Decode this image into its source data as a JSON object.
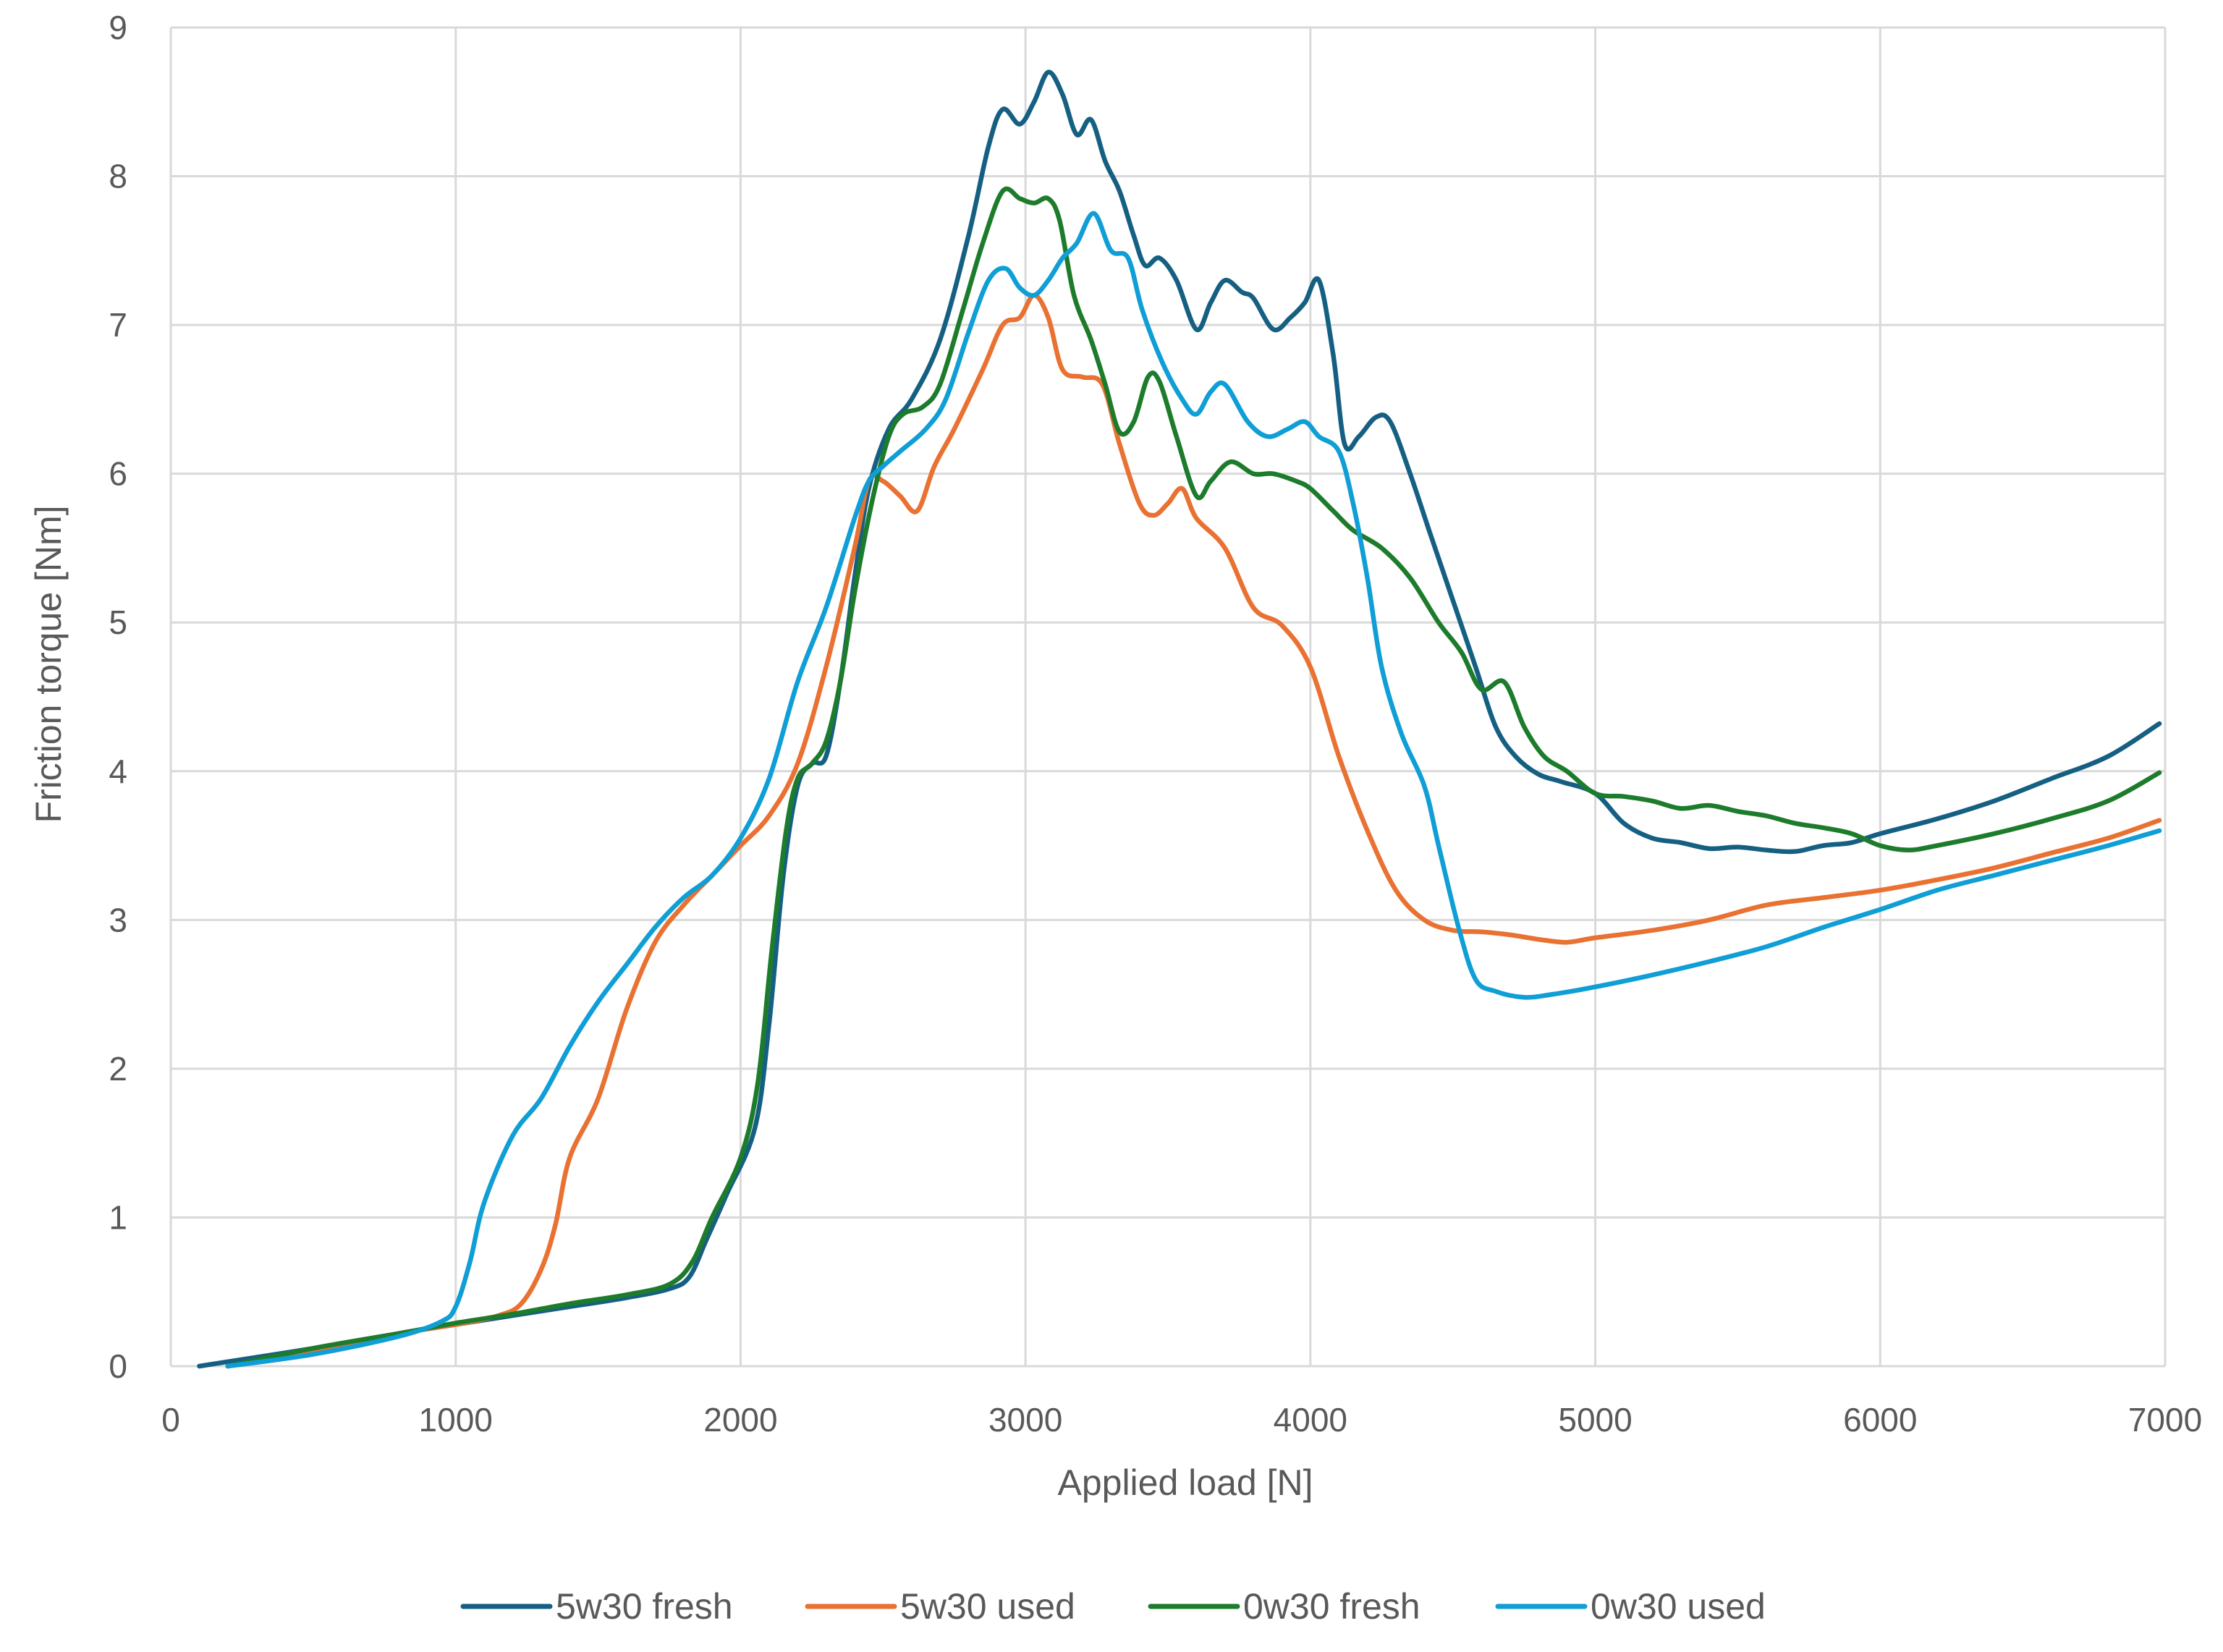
{
  "chart_data": {
    "type": "line",
    "title": "",
    "xlabel": "Applied load [N]",
    "ylabel": "Friction torque [Nm]",
    "xlim": [
      0,
      7000
    ],
    "ylim": [
      0,
      9
    ],
    "xticks": [
      0,
      1000,
      2000,
      3000,
      4000,
      5000,
      6000,
      7000
    ],
    "yticks": [
      0,
      1,
      2,
      3,
      4,
      5,
      6,
      7,
      8,
      9
    ],
    "grid": true,
    "legend_position": "bottom",
    "series": [
      {
        "name": "5w30 fresh",
        "color": "#156082",
        "points": [
          [
            100,
            0
          ],
          [
            200,
            0.03
          ],
          [
            500,
            0.12
          ],
          [
            800,
            0.22
          ],
          [
            1000,
            0.28
          ],
          [
            1200,
            0.34
          ],
          [
            1400,
            0.4
          ],
          [
            1600,
            0.46
          ],
          [
            1750,
            0.52
          ],
          [
            1820,
            0.6
          ],
          [
            1880,
            0.85
          ],
          [
            1950,
            1.15
          ],
          [
            2050,
            1.6
          ],
          [
            2100,
            2.3
          ],
          [
            2150,
            3.3
          ],
          [
            2200,
            3.9
          ],
          [
            2250,
            4.05
          ],
          [
            2300,
            4.1
          ],
          [
            2350,
            4.6
          ],
          [
            2400,
            5.3
          ],
          [
            2450,
            5.9
          ],
          [
            2520,
            6.3
          ],
          [
            2600,
            6.5
          ],
          [
            2700,
            6.9
          ],
          [
            2800,
            7.6
          ],
          [
            2870,
            8.2
          ],
          [
            2920,
            8.45
          ],
          [
            2980,
            8.35
          ],
          [
            3030,
            8.5
          ],
          [
            3080,
            8.7
          ],
          [
            3130,
            8.55
          ],
          [
            3180,
            8.28
          ],
          [
            3230,
            8.38
          ],
          [
            3280,
            8.1
          ],
          [
            3330,
            7.9
          ],
          [
            3380,
            7.6
          ],
          [
            3420,
            7.4
          ],
          [
            3470,
            7.45
          ],
          [
            3530,
            7.3
          ],
          [
            3600,
            6.97
          ],
          [
            3650,
            7.15
          ],
          [
            3700,
            7.3
          ],
          [
            3760,
            7.22
          ],
          [
            3800,
            7.18
          ],
          [
            3870,
            6.97
          ],
          [
            3930,
            7.05
          ],
          [
            3980,
            7.15
          ],
          [
            4030,
            7.3
          ],
          [
            4080,
            6.8
          ],
          [
            4120,
            6.2
          ],
          [
            4170,
            6.25
          ],
          [
            4230,
            6.38
          ],
          [
            4280,
            6.35
          ],
          [
            4350,
            6.0
          ],
          [
            4420,
            5.6
          ],
          [
            4500,
            5.15
          ],
          [
            4580,
            4.7
          ],
          [
            4650,
            4.3
          ],
          [
            4720,
            4.1
          ],
          [
            4800,
            3.98
          ],
          [
            4880,
            3.93
          ],
          [
            5000,
            3.85
          ],
          [
            5100,
            3.65
          ],
          [
            5200,
            3.55
          ],
          [
            5300,
            3.52
          ],
          [
            5400,
            3.48
          ],
          [
            5500,
            3.49
          ],
          [
            5600,
            3.47
          ],
          [
            5700,
            3.46
          ],
          [
            5800,
            3.5
          ],
          [
            5900,
            3.52
          ],
          [
            6000,
            3.58
          ],
          [
            6200,
            3.68
          ],
          [
            6400,
            3.8
          ],
          [
            6600,
            3.95
          ],
          [
            6800,
            4.1
          ],
          [
            6980,
            4.32
          ]
        ]
      },
      {
        "name": "5w30 used",
        "color": "#e97132",
        "points": [
          [
            200,
            0
          ],
          [
            500,
            0.1
          ],
          [
            800,
            0.22
          ],
          [
            1000,
            0.28
          ],
          [
            1150,
            0.34
          ],
          [
            1230,
            0.42
          ],
          [
            1300,
            0.65
          ],
          [
            1350,
            0.95
          ],
          [
            1400,
            1.4
          ],
          [
            1500,
            1.8
          ],
          [
            1600,
            2.4
          ],
          [
            1700,
            2.85
          ],
          [
            1800,
            3.1
          ],
          [
            1900,
            3.3
          ],
          [
            2000,
            3.5
          ],
          [
            2100,
            3.7
          ],
          [
            2200,
            4.05
          ],
          [
            2300,
            4.7
          ],
          [
            2400,
            5.5
          ],
          [
            2450,
            5.95
          ],
          [
            2500,
            5.95
          ],
          [
            2560,
            5.85
          ],
          [
            2620,
            5.75
          ],
          [
            2680,
            6.05
          ],
          [
            2750,
            6.3
          ],
          [
            2850,
            6.7
          ],
          [
            2920,
            7.0
          ],
          [
            2980,
            7.05
          ],
          [
            3030,
            7.2
          ],
          [
            3080,
            7.05
          ],
          [
            3130,
            6.7
          ],
          [
            3200,
            6.65
          ],
          [
            3270,
            6.6
          ],
          [
            3330,
            6.2
          ],
          [
            3400,
            5.8
          ],
          [
            3450,
            5.72
          ],
          [
            3500,
            5.8
          ],
          [
            3550,
            5.9
          ],
          [
            3600,
            5.7
          ],
          [
            3700,
            5.5
          ],
          [
            3800,
            5.1
          ],
          [
            3900,
            4.98
          ],
          [
            4000,
            4.7
          ],
          [
            4100,
            4.1
          ],
          [
            4200,
            3.6
          ],
          [
            4300,
            3.2
          ],
          [
            4400,
            3.0
          ],
          [
            4500,
            2.93
          ],
          [
            4600,
            2.92
          ],
          [
            4700,
            2.9
          ],
          [
            4800,
            2.87
          ],
          [
            4900,
            2.85
          ],
          [
            5000,
            2.88
          ],
          [
            5200,
            2.93
          ],
          [
            5400,
            3.0
          ],
          [
            5600,
            3.1
          ],
          [
            5800,
            3.15
          ],
          [
            6000,
            3.2
          ],
          [
            6200,
            3.27
          ],
          [
            6400,
            3.35
          ],
          [
            6600,
            3.45
          ],
          [
            6800,
            3.55
          ],
          [
            6980,
            3.67
          ]
        ]
      },
      {
        "name": "0w30 fresh",
        "color": "#1d7c2c",
        "points": [
          [
            200,
            0
          ],
          [
            500,
            0.12
          ],
          [
            800,
            0.22
          ],
          [
            1000,
            0.29
          ],
          [
            1200,
            0.35
          ],
          [
            1400,
            0.42
          ],
          [
            1600,
            0.48
          ],
          [
            1750,
            0.55
          ],
          [
            1830,
            0.7
          ],
          [
            1900,
            1.0
          ],
          [
            2000,
            1.4
          ],
          [
            2060,
            1.9
          ],
          [
            2110,
            2.8
          ],
          [
            2160,
            3.6
          ],
          [
            2200,
            3.95
          ],
          [
            2250,
            4.05
          ],
          [
            2300,
            4.2
          ],
          [
            2350,
            4.6
          ],
          [
            2400,
            5.2
          ],
          [
            2460,
            5.8
          ],
          [
            2520,
            6.25
          ],
          [
            2570,
            6.4
          ],
          [
            2640,
            6.45
          ],
          [
            2700,
            6.6
          ],
          [
            2780,
            7.1
          ],
          [
            2850,
            7.55
          ],
          [
            2920,
            7.9
          ],
          [
            2980,
            7.85
          ],
          [
            3030,
            7.82
          ],
          [
            3080,
            7.85
          ],
          [
            3120,
            7.7
          ],
          [
            3170,
            7.2
          ],
          [
            3230,
            6.9
          ],
          [
            3280,
            6.6
          ],
          [
            3330,
            6.28
          ],
          [
            3380,
            6.35
          ],
          [
            3430,
            6.65
          ],
          [
            3470,
            6.62
          ],
          [
            3530,
            6.25
          ],
          [
            3600,
            5.85
          ],
          [
            3650,
            5.95
          ],
          [
            3720,
            6.08
          ],
          [
            3800,
            6.0
          ],
          [
            3870,
            6.0
          ],
          [
            3950,
            5.95
          ],
          [
            4000,
            5.9
          ],
          [
            4080,
            5.75
          ],
          [
            4150,
            5.62
          ],
          [
            4250,
            5.5
          ],
          [
            4350,
            5.3
          ],
          [
            4450,
            5.0
          ],
          [
            4530,
            4.8
          ],
          [
            4600,
            4.55
          ],
          [
            4680,
            4.6
          ],
          [
            4750,
            4.3
          ],
          [
            4820,
            4.1
          ],
          [
            4900,
            4.0
          ],
          [
            5000,
            3.85
          ],
          [
            5100,
            3.83
          ],
          [
            5200,
            3.8
          ],
          [
            5300,
            3.75
          ],
          [
            5400,
            3.77
          ],
          [
            5500,
            3.73
          ],
          [
            5600,
            3.7
          ],
          [
            5700,
            3.65
          ],
          [
            5800,
            3.62
          ],
          [
            5900,
            3.58
          ],
          [
            6000,
            3.5
          ],
          [
            6100,
            3.47
          ],
          [
            6200,
            3.5
          ],
          [
            6400,
            3.58
          ],
          [
            6600,
            3.68
          ],
          [
            6800,
            3.8
          ],
          [
            6980,
            3.99
          ]
        ]
      },
      {
        "name": "0w30 used",
        "color": "#0f9ed5",
        "points": [
          [
            200,
            0
          ],
          [
            500,
            0.08
          ],
          [
            800,
            0.2
          ],
          [
            950,
            0.3
          ],
          [
            1000,
            0.4
          ],
          [
            1050,
            0.7
          ],
          [
            1100,
            1.1
          ],
          [
            1200,
            1.55
          ],
          [
            1300,
            1.8
          ],
          [
            1400,
            2.15
          ],
          [
            1500,
            2.45
          ],
          [
            1600,
            2.7
          ],
          [
            1700,
            2.95
          ],
          [
            1800,
            3.15
          ],
          [
            1900,
            3.3
          ],
          [
            2000,
            3.55
          ],
          [
            2100,
            3.95
          ],
          [
            2200,
            4.6
          ],
          [
            2300,
            5.1
          ],
          [
            2400,
            5.7
          ],
          [
            2450,
            5.95
          ],
          [
            2500,
            6.05
          ],
          [
            2560,
            6.15
          ],
          [
            2650,
            6.3
          ],
          [
            2720,
            6.5
          ],
          [
            2800,
            6.95
          ],
          [
            2870,
            7.3
          ],
          [
            2930,
            7.38
          ],
          [
            2980,
            7.25
          ],
          [
            3030,
            7.2
          ],
          [
            3080,
            7.3
          ],
          [
            3130,
            7.45
          ],
          [
            3180,
            7.55
          ],
          [
            3240,
            7.75
          ],
          [
            3300,
            7.5
          ],
          [
            3360,
            7.45
          ],
          [
            3410,
            7.1
          ],
          [
            3480,
            6.75
          ],
          [
            3550,
            6.5
          ],
          [
            3600,
            6.4
          ],
          [
            3650,
            6.55
          ],
          [
            3700,
            6.6
          ],
          [
            3780,
            6.35
          ],
          [
            3850,
            6.25
          ],
          [
            3920,
            6.3
          ],
          [
            3980,
            6.35
          ],
          [
            4030,
            6.25
          ],
          [
            4100,
            6.15
          ],
          [
            4150,
            5.8
          ],
          [
            4200,
            5.3
          ],
          [
            4250,
            4.7
          ],
          [
            4320,
            4.25
          ],
          [
            4400,
            3.9
          ],
          [
            4450,
            3.5
          ],
          [
            4520,
            2.95
          ],
          [
            4580,
            2.6
          ],
          [
            4650,
            2.52
          ],
          [
            4750,
            2.48
          ],
          [
            4850,
            2.5
          ],
          [
            5000,
            2.55
          ],
          [
            5200,
            2.63
          ],
          [
            5400,
            2.72
          ],
          [
            5600,
            2.82
          ],
          [
            5800,
            2.95
          ],
          [
            6000,
            3.07
          ],
          [
            6200,
            3.2
          ],
          [
            6400,
            3.3
          ],
          [
            6600,
            3.4
          ],
          [
            6800,
            3.5
          ],
          [
            6980,
            3.6
          ]
        ]
      }
    ]
  }
}
